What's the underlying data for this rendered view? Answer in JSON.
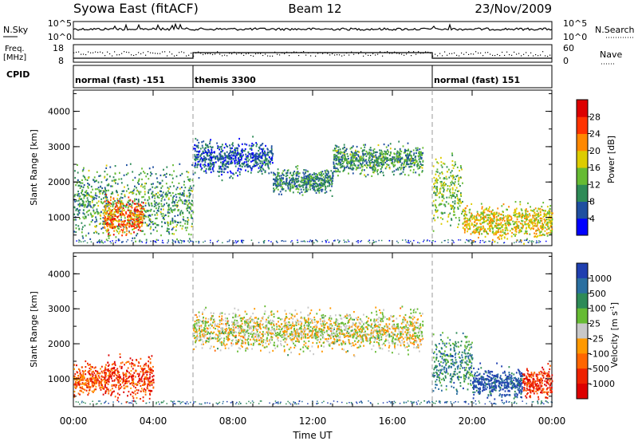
{
  "header": {
    "title": "Syowa East (fitACF)",
    "beam": "Beam 12",
    "date": "23/Nov/2009"
  },
  "top_panels": {
    "nsky_label": "N.Sky",
    "nsky_ticks": [
      "10^5",
      "10^0"
    ],
    "nsearch_label": "N.Search",
    "nsearch_ticks": [
      "10^5",
      "10^0"
    ],
    "freq_label_1": "Freq.",
    "freq_label_2": "[MHz]",
    "freq_ticks": [
      "18",
      "8"
    ],
    "nave_label": "Nave",
    "nave_ticks": [
      "60",
      "0"
    ],
    "cpid_label": "CPID"
  },
  "cpid_segments": [
    {
      "label": "normal (fast) -151",
      "start_hour": 0,
      "end_hour": 6
    },
    {
      "label": "themis 3300",
      "start_hour": 6,
      "end_hour": 18
    },
    {
      "label": "normal (fast) 151",
      "start_hour": 18,
      "end_hour": 24
    }
  ],
  "x_axis": {
    "label": "Time UT",
    "ticks": [
      "00:00",
      "04:00",
      "08:00",
      "12:00",
      "16:00",
      "20:00",
      "00:00"
    ],
    "tick_hours": [
      0,
      4,
      8,
      12,
      16,
      20,
      24
    ],
    "range_hours": [
      0,
      24
    ]
  },
  "power_panel": {
    "ylabel": "Slant Range [km]",
    "yticks": [
      "1000",
      "2000",
      "3000",
      "4000"
    ],
    "ytick_values": [
      1000,
      2000,
      3000,
      4000
    ],
    "ylim": [
      200,
      4600
    ],
    "colorbar_label": "Power [dB]",
    "colorbar_ticks": [
      "4",
      "8",
      "12",
      "16",
      "20",
      "24",
      "28"
    ],
    "colorbar_tick_values": [
      4,
      8,
      12,
      16,
      20,
      24,
      28
    ],
    "colorbar_range": [
      0,
      32
    ],
    "colors": [
      "#0000ff",
      "#1f4fa0",
      "#2e8b57",
      "#66bb33",
      "#ddcc00",
      "#ff8800",
      "#ff3300",
      "#dd0000"
    ]
  },
  "velocity_panel": {
    "ylabel": "Slant Range [km]",
    "yticks": [
      "1000",
      "2000",
      "3000",
      "4000"
    ],
    "ytick_values": [
      1000,
      2000,
      3000,
      4000
    ],
    "ylim": [
      200,
      4600
    ],
    "colorbar_label": "Velocity [m s",
    "colorbar_label_sup": "-1",
    "colorbar_label_end": "]",
    "colorbar_ticks": [
      "1000",
      "500",
      "100",
      "25",
      "-25",
      "-100",
      "-500",
      "-1000"
    ],
    "colors": [
      "#1f3fb0",
      "#2a6fa0",
      "#2e8b57",
      "#66bb33",
      "#c8c8c8",
      "#ff9900",
      "#ff6600",
      "#ee2200",
      "#dd0000"
    ]
  },
  "chart_data": {
    "type": "heatmap",
    "title": "Syowa East (fitACF)",
    "xlabel": "Time UT",
    "ylabel": "Slant Range [km]",
    "xlim_hours": [
      0,
      24
    ],
    "ylim": [
      200,
      4600
    ],
    "power_scatter_regions": [
      {
        "t0": 0.0,
        "t1": 6.0,
        "r_center": 1400,
        "r_spread": 700,
        "level": 0.35
      },
      {
        "t0": 1.5,
        "t1": 3.5,
        "r_center": 1050,
        "r_spread": 350,
        "level": 0.75
      },
      {
        "t0": 6.0,
        "t1": 10.0,
        "r_center": 2700,
        "r_spread": 350,
        "level": 0.2
      },
      {
        "t0": 10.0,
        "t1": 13.0,
        "r_center": 2050,
        "r_spread": 250,
        "level": 0.3
      },
      {
        "t0": 13.0,
        "t1": 17.5,
        "r_center": 2650,
        "r_spread": 300,
        "level": 0.35
      },
      {
        "t0": 18.0,
        "t1": 19.5,
        "r_center": 1800,
        "r_spread": 700,
        "level": 0.45
      },
      {
        "t0": 19.5,
        "t1": 24.0,
        "r_center": 900,
        "r_spread": 350,
        "level": 0.55
      }
    ],
    "velocity_scatter_regions": [
      {
        "t0": 0.0,
        "t1": 1.5,
        "r_center": 1000,
        "r_spread": 300,
        "level": 0.75
      },
      {
        "t0": 1.5,
        "t1": 4.0,
        "r_center": 1050,
        "r_spread": 400,
        "level": 0.8
      },
      {
        "t0": 6.0,
        "t1": 17.5,
        "r_center": 2400,
        "r_spread": 400,
        "level": 0.5
      },
      {
        "t0": 18.0,
        "t1": 20.0,
        "r_center": 1500,
        "r_spread": 600,
        "level": 0.25
      },
      {
        "t0": 20.0,
        "t1": 22.5,
        "r_center": 900,
        "r_spread": 300,
        "level": 0.1
      },
      {
        "t0": 22.5,
        "t1": 24.0,
        "r_center": 900,
        "r_spread": 300,
        "level": 0.85
      }
    ]
  }
}
